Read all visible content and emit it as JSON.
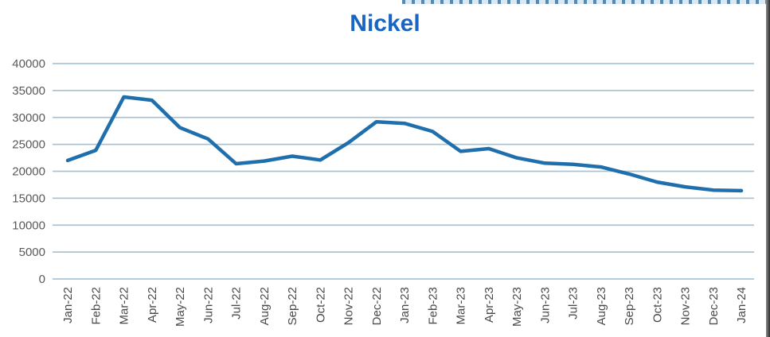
{
  "page": {
    "background": "#ffffff"
  },
  "decorations": {
    "top_dashed_border_color": "#cfe2f2",
    "top_dash_color": "#2e6da4",
    "right_border_color": "#2f2f2f"
  },
  "chart_data": {
    "type": "line",
    "title": "Nickel",
    "categories": [
      "Jan-22",
      "Feb-22",
      "Mar-22",
      "Apr-22",
      "May-22",
      "Jun-22",
      "Jul-22",
      "Aug-22",
      "Sep-22",
      "Oct-22",
      "Nov-22",
      "Dec-22",
      "Jan-23",
      "Feb-23",
      "Mar-23",
      "Apr-23",
      "May-23",
      "Jun-23",
      "Jul-23",
      "Aug-23",
      "Sep-23",
      "Oct-23",
      "Nov-23",
      "Dec-23",
      "Jan-24"
    ],
    "series": [
      {
        "name": "Nickel",
        "values": [
          22000,
          23900,
          33800,
          33200,
          28100,
          26000,
          21400,
          21900,
          22800,
          22100,
          25300,
          29200,
          28900,
          27400,
          23700,
          24200,
          22500,
          21500,
          21300,
          20800,
          19500,
          18000,
          17100,
          16500,
          16400
        ]
      }
    ],
    "xlabel": "",
    "ylabel": "",
    "ylim": [
      0,
      40000
    ],
    "ytick_step": 5000,
    "ytick_labels": [
      "0",
      "5000",
      "10000",
      "15000",
      "20000",
      "25000",
      "30000",
      "35000",
      "40000"
    ],
    "grid": "horizontal",
    "legend": "none",
    "line_color": "#1f6fad",
    "grid_color": "#a9c4d6",
    "title_color": "#1a64c4",
    "ytick_color": "#595959",
    "xtick_color": "#4a4a4a"
  }
}
